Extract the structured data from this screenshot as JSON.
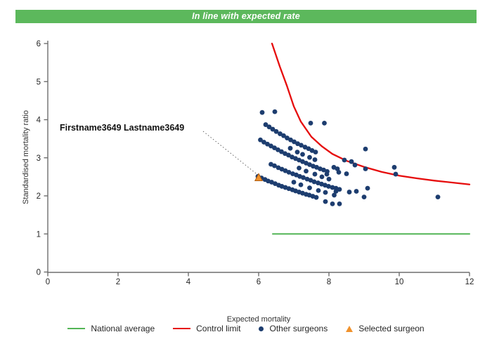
{
  "header": {
    "title": "In line with expected rate",
    "background": "#5cb85c",
    "text_color": "#ffffff"
  },
  "annotation": {
    "label": "Firstname3649 Lastname3649"
  },
  "legend": {
    "items": [
      {
        "label": "National average",
        "swatch": "line",
        "color": "#53b556"
      },
      {
        "label": "Control limit",
        "swatch": "line",
        "color": "#e60c0c"
      },
      {
        "label": "Other surgeons",
        "swatch": "dot",
        "color": "#1d3d6f"
      },
      {
        "label": "Selected surgeon",
        "swatch": "triangle",
        "color": "#f0922d"
      }
    ]
  },
  "chart_data": {
    "type": "scatter",
    "title": "In line with expected rate",
    "xlabel": "Expected mortality",
    "ylabel": "Standardised mortality ratio",
    "xlim": [
      0,
      12
    ],
    "ylim": [
      0,
      6
    ],
    "xticks": [
      0,
      2,
      4,
      6,
      8,
      10,
      12
    ],
    "yticks": [
      0,
      1,
      2,
      3,
      4,
      5,
      6
    ],
    "grid": false,
    "legend_position": "bottom",
    "annotation": {
      "text": "Firstname3649 Lastname3649",
      "target": [
        6.0,
        2.47
      ]
    },
    "series": [
      {
        "name": "National average",
        "type": "line",
        "color": "#53b556",
        "width": 2,
        "points": [
          [
            6.4,
            1.0
          ],
          [
            12.0,
            1.0
          ]
        ]
      },
      {
        "name": "Control limit",
        "type": "line",
        "color": "#e60c0c",
        "width": 2.3,
        "points": [
          [
            6.38,
            6.0
          ],
          [
            6.6,
            5.4
          ],
          [
            6.8,
            4.9
          ],
          [
            7.0,
            4.35
          ],
          [
            7.2,
            3.95
          ],
          [
            7.5,
            3.55
          ],
          [
            7.8,
            3.3
          ],
          [
            8.1,
            3.1
          ],
          [
            8.5,
            2.92
          ],
          [
            9.0,
            2.76
          ],
          [
            9.5,
            2.63
          ],
          [
            10.0,
            2.53
          ],
          [
            10.5,
            2.46
          ],
          [
            11.0,
            2.4
          ],
          [
            11.5,
            2.35
          ],
          [
            12.0,
            2.3
          ]
        ]
      },
      {
        "name": "Other surgeons",
        "type": "scatter",
        "marker": "circle",
        "color": "#1d3d6f",
        "points": [
          [
            6.2,
            3.87
          ],
          [
            6.3,
            3.81
          ],
          [
            6.4,
            3.75
          ],
          [
            6.5,
            3.69
          ],
          [
            6.61,
            3.63
          ],
          [
            6.71,
            3.58
          ],
          [
            6.81,
            3.52
          ],
          [
            6.91,
            3.47
          ],
          [
            7.01,
            3.42
          ],
          [
            7.11,
            3.37
          ],
          [
            7.21,
            3.33
          ],
          [
            7.32,
            3.28
          ],
          [
            7.42,
            3.24
          ],
          [
            7.52,
            3.19
          ],
          [
            7.62,
            3.15
          ],
          [
            6.05,
            3.47
          ],
          [
            6.15,
            3.41
          ],
          [
            6.25,
            3.36
          ],
          [
            6.35,
            3.31
          ],
          [
            6.45,
            3.26
          ],
          [
            6.55,
            3.21
          ],
          [
            6.65,
            3.16
          ],
          [
            6.75,
            3.11
          ],
          [
            6.85,
            3.07
          ],
          [
            6.95,
            3.02
          ],
          [
            7.05,
            2.98
          ],
          [
            7.15,
            2.94
          ],
          [
            7.25,
            2.9
          ],
          [
            7.35,
            2.86
          ],
          [
            7.45,
            2.82
          ],
          [
            7.55,
            2.78
          ],
          [
            7.65,
            2.75
          ],
          [
            7.75,
            2.71
          ],
          [
            7.85,
            2.68
          ],
          [
            7.95,
            2.64
          ],
          [
            6.35,
            2.83
          ],
          [
            6.45,
            2.79
          ],
          [
            6.56,
            2.74
          ],
          [
            6.66,
            2.7
          ],
          [
            6.76,
            2.66
          ],
          [
            6.86,
            2.62
          ],
          [
            6.97,
            2.58
          ],
          [
            7.07,
            2.55
          ],
          [
            7.17,
            2.51
          ],
          [
            7.27,
            2.48
          ],
          [
            7.38,
            2.44
          ],
          [
            7.48,
            2.41
          ],
          [
            7.58,
            2.37
          ],
          [
            7.69,
            2.34
          ],
          [
            7.79,
            2.31
          ],
          [
            7.89,
            2.28
          ],
          [
            7.99,
            2.25
          ],
          [
            8.1,
            2.22
          ],
          [
            8.2,
            2.2
          ],
          [
            8.3,
            2.17
          ],
          [
            5.98,
            2.51
          ],
          [
            6.08,
            2.47
          ],
          [
            6.18,
            2.43
          ],
          [
            6.27,
            2.39
          ],
          [
            6.37,
            2.36
          ],
          [
            6.47,
            2.32
          ],
          [
            6.57,
            2.28
          ],
          [
            6.66,
            2.25
          ],
          [
            6.76,
            2.22
          ],
          [
            6.86,
            2.19
          ],
          [
            6.96,
            2.16
          ],
          [
            7.05,
            2.13
          ],
          [
            7.15,
            2.1
          ],
          [
            7.25,
            2.07
          ],
          [
            7.35,
            2.04
          ],
          [
            7.44,
            2.02
          ],
          [
            7.54,
            1.99
          ],
          [
            7.64,
            1.96
          ],
          [
            6.9,
            3.25
          ],
          [
            7.1,
            3.15
          ],
          [
            7.25,
            3.09
          ],
          [
            7.45,
            3.01
          ],
          [
            7.6,
            2.95
          ],
          [
            7.15,
            2.73
          ],
          [
            7.35,
            2.65
          ],
          [
            7.6,
            2.57
          ],
          [
            7.8,
            2.5
          ],
          [
            8.0,
            2.44
          ],
          [
            7.0,
            2.36
          ],
          [
            7.2,
            2.29
          ],
          [
            7.45,
            2.21
          ],
          [
            7.7,
            2.14
          ],
          [
            7.9,
            2.09
          ],
          [
            8.15,
            2.02
          ],
          [
            6.1,
            4.19
          ],
          [
            6.46,
            4.21
          ],
          [
            7.48,
            3.91
          ],
          [
            7.87,
            3.91
          ],
          [
            9.04,
            3.23
          ],
          [
            8.44,
            2.94
          ],
          [
            8.64,
            2.9
          ],
          [
            8.74,
            2.81
          ],
          [
            8.14,
            2.75
          ],
          [
            8.24,
            2.71
          ],
          [
            8.5,
            2.58
          ],
          [
            9.04,
            2.71
          ],
          [
            9.86,
            2.75
          ],
          [
            9.9,
            2.57
          ],
          [
            7.94,
            2.57
          ],
          [
            9.1,
            2.2
          ],
          [
            9.0,
            1.97
          ],
          [
            8.28,
            2.62
          ],
          [
            8.2,
            2.12
          ],
          [
            8.58,
            2.1
          ],
          [
            8.78,
            2.12
          ],
          [
            7.9,
            1.85
          ],
          [
            8.1,
            1.79
          ],
          [
            8.3,
            1.79
          ],
          [
            11.1,
            1.97
          ]
        ]
      },
      {
        "name": "Selected surgeon",
        "type": "scatter",
        "marker": "triangle",
        "color": "#f0922d",
        "edge_color": "#b05e10",
        "points": [
          [
            6.0,
            2.47
          ]
        ]
      }
    ]
  }
}
